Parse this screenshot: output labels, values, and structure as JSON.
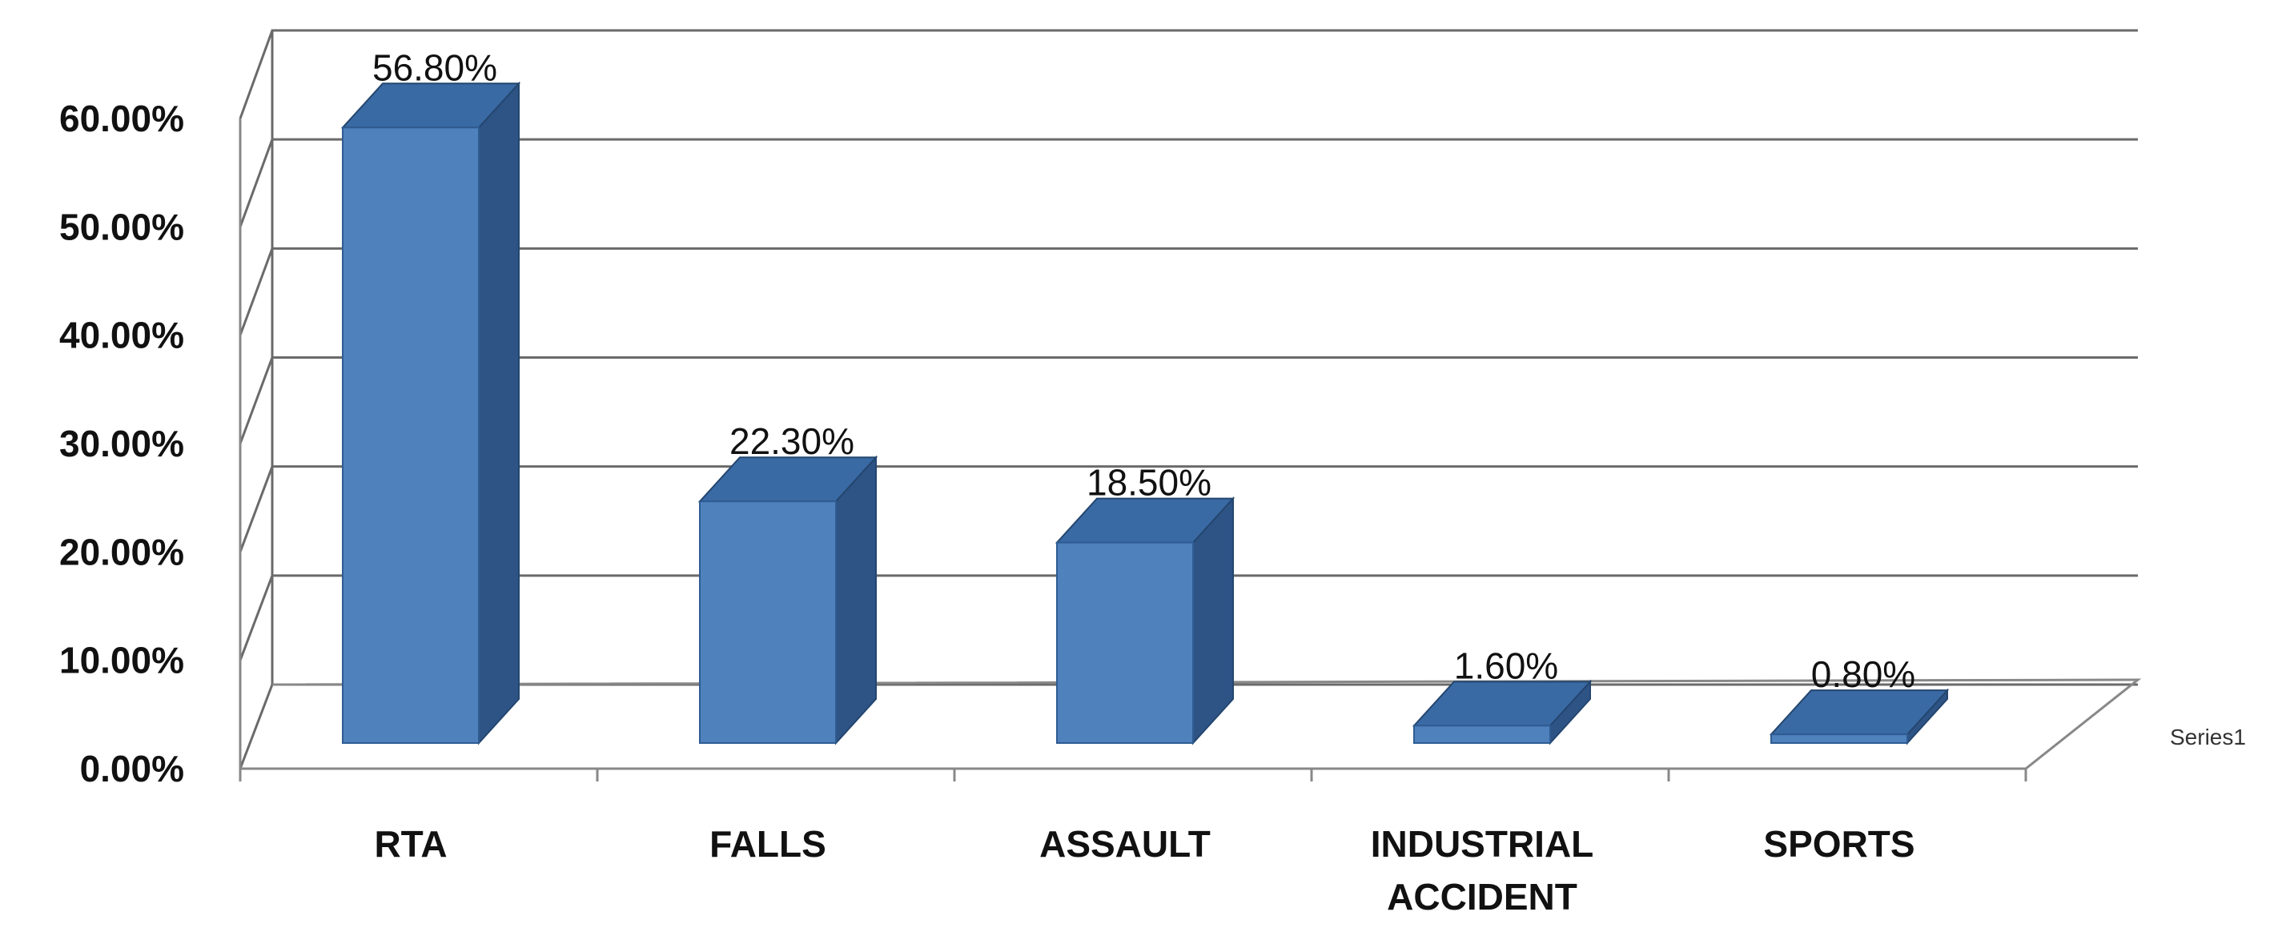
{
  "chart_data": {
    "type": "bar",
    "style": "3d-column",
    "categories": [
      "RTA",
      "FALLS",
      "ASSAULT",
      "INDUSTRIAL ACCIDENT",
      "SPORTS"
    ],
    "series": [
      {
        "name": "Series1",
        "values": [
          56.8,
          22.3,
          18.5,
          1.6,
          0.8
        ],
        "labels": [
          "56.80%",
          "22.30%",
          "18.50%",
          "1.60%",
          "0.80%"
        ],
        "color": "#4f81bd"
      }
    ],
    "y_tick_labels": [
      "0.00%",
      "10.00%",
      "20.00%",
      "30.00%",
      "40.00%",
      "50.00%",
      "60.00%"
    ],
    "ylim": [
      0,
      60
    ],
    "y_unit": "%",
    "grid": true,
    "legend": "right-depth-axis",
    "colors": {
      "bar_front": "#4f81bd",
      "bar_side": "#2e5486",
      "bar_top": "#3a6aa4",
      "grid": "#6a6a6a"
    }
  }
}
